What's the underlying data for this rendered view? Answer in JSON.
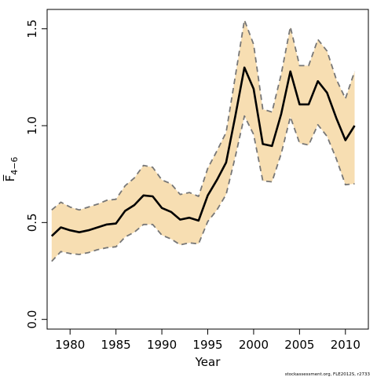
{
  "chart_data": {
    "type": "line",
    "xlabel": "Year",
    "ylabel": "F̅",
    "ylabel_sub": "4−6",
    "xlim": [
      1977.5,
      2012.5
    ],
    "ylim": [
      -0.05,
      1.6
    ],
    "x_ticks": [
      1980,
      1985,
      1990,
      1995,
      2000,
      2005,
      2010
    ],
    "y_ticks": [
      0.0,
      0.5,
      1.0,
      1.5
    ],
    "y_tick_labels": [
      "0.0",
      "0.5",
      "1.0",
      "1.5"
    ],
    "grid": false,
    "colors": {
      "band": "#f7deb2",
      "line": "#000000",
      "bound": "#777777"
    },
    "x": [
      1978,
      1979,
      1980,
      1981,
      1982,
      1983,
      1984,
      1985,
      1986,
      1987,
      1988,
      1989,
      1990,
      1991,
      1992,
      1993,
      1994,
      1995,
      1996,
      1997,
      1998,
      1999,
      2000,
      2001,
      2002,
      2003,
      2004,
      2005,
      2006,
      2007,
      2008,
      2009,
      2010,
      2011
    ],
    "series": [
      {
        "role": "estimate",
        "values": [
          0.43,
          0.475,
          0.46,
          0.45,
          0.46,
          0.475,
          0.49,
          0.495,
          0.56,
          0.59,
          0.64,
          0.635,
          0.575,
          0.555,
          0.515,
          0.525,
          0.51,
          0.64,
          0.72,
          0.81,
          1.05,
          1.3,
          1.19,
          0.905,
          0.895,
          1.06,
          1.28,
          1.11,
          1.11,
          1.23,
          1.17,
          1.04,
          0.925,
          1.0
        ]
      },
      {
        "role": "upper",
        "values": [
          0.565,
          0.605,
          0.58,
          0.565,
          0.58,
          0.595,
          0.615,
          0.62,
          0.69,
          0.73,
          0.795,
          0.785,
          0.72,
          0.7,
          0.645,
          0.655,
          0.635,
          0.78,
          0.87,
          0.965,
          1.255,
          1.545,
          1.42,
          1.085,
          1.07,
          1.265,
          1.51,
          1.31,
          1.31,
          1.445,
          1.385,
          1.24,
          1.14,
          1.28
        ]
      },
      {
        "role": "lower",
        "values": [
          0.3,
          0.35,
          0.34,
          0.335,
          0.345,
          0.36,
          0.37,
          0.375,
          0.425,
          0.45,
          0.49,
          0.49,
          0.435,
          0.415,
          0.385,
          0.395,
          0.39,
          0.505,
          0.565,
          0.645,
          0.84,
          1.05,
          0.955,
          0.715,
          0.71,
          0.855,
          1.045,
          0.91,
          0.9,
          1.005,
          0.945,
          0.83,
          0.695,
          0.7
        ]
      }
    ]
  },
  "footer": "stockassessment.org, FLE2012S, r2733"
}
